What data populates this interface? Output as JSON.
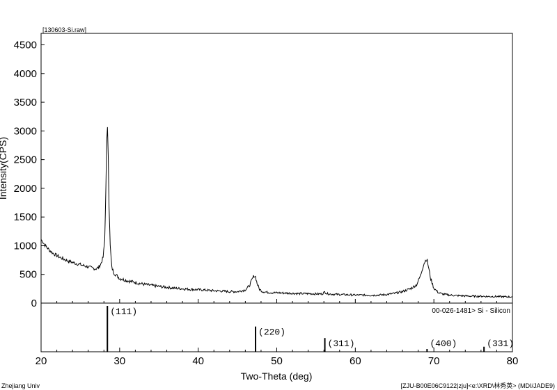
{
  "file_label": "[130603-Si.raw]",
  "reference_label": "00-026-1481> Si - Silicon",
  "institution": "Zhejiang Univ",
  "footer_right": "[ZJU-B00E06C9122|zju]<e:\\XRD\\林秀英> (MDI/JADE9)",
  "colors": {
    "line": "#000000",
    "axis": "#000000",
    "background": "#ffffff"
  },
  "chart_data": {
    "type": "line",
    "xlabel": "Two-Theta (deg)",
    "ylabel": "Intensity(CPS)",
    "xlim": [
      20,
      80
    ],
    "ylim": [
      0,
      4700
    ],
    "x_ticks": [
      20,
      30,
      40,
      50,
      60,
      70,
      80
    ],
    "y_ticks": [
      0,
      500,
      1000,
      1500,
      2000,
      2500,
      3000,
      3500,
      4000,
      4500
    ],
    "grid": false,
    "series": [
      {
        "x": [
          20,
          20.5,
          21,
          21.5,
          22,
          22.5,
          23,
          23.5,
          24,
          24.5,
          25,
          25.5,
          26,
          26.5,
          27,
          27.3,
          27.6,
          27.9,
          28.1,
          28.25,
          28.35,
          28.45,
          28.55,
          28.65,
          28.8,
          29.0,
          29.3,
          29.7,
          30,
          31,
          32,
          33,
          34,
          35,
          36,
          37,
          38,
          39,
          40,
          41,
          42,
          43,
          44,
          45,
          46,
          46.5,
          46.9,
          47.1,
          47.3,
          47.5,
          47.8,
          48.2,
          49,
          50,
          51,
          52,
          53,
          54,
          55,
          55.8,
          56.1,
          56.4,
          57,
          58,
          59,
          60,
          61,
          62,
          63,
          64,
          65,
          66,
          67,
          67.8,
          68.3,
          68.7,
          69.0,
          69.15,
          69.3,
          69.6,
          70.0,
          70.5,
          71,
          72,
          73,
          74,
          75,
          76,
          77,
          78,
          79,
          80
        ],
        "y": [
          1110,
          1010,
          930,
          870,
          830,
          790,
          760,
          730,
          710,
          690,
          670,
          650,
          630,
          610,
          600,
          620,
          680,
          800,
          1100,
          2000,
          2800,
          3080,
          2600,
          1700,
          1000,
          620,
          520,
          470,
          430,
          390,
          360,
          330,
          310,
          290,
          275,
          260,
          250,
          240,
          235,
          225,
          215,
          210,
          200,
          200,
          230,
          300,
          420,
          480,
          460,
          340,
          240,
          200,
          185,
          180,
          175,
          170,
          165,
          165,
          160,
          160,
          195,
          165,
          155,
          150,
          145,
          140,
          140,
          135,
          140,
          150,
          170,
          200,
          250,
          320,
          480,
          680,
          760,
          740,
          640,
          420,
          260,
          190,
          160,
          140,
          130,
          125,
          120,
          120,
          115,
          115,
          110,
          110
        ]
      }
    ],
    "reference": {
      "name": "00-026-1481> Si - Silicon",
      "peaks": [
        {
          "two_theta": 28.44,
          "intensity": 100,
          "hkl": "(111)"
        },
        {
          "two_theta": 47.3,
          "intensity": 55,
          "hkl": "(220)"
        },
        {
          "two_theta": 56.12,
          "intensity": 30,
          "hkl": "(311)"
        },
        {
          "two_theta": 69.13,
          "intensity": 6,
          "hkl": "(400)"
        },
        {
          "two_theta": 76.38,
          "intensity": 11,
          "hkl": "(331)"
        }
      ]
    }
  }
}
